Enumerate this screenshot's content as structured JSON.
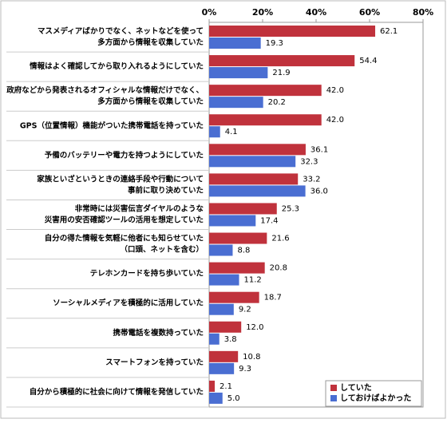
{
  "chart_data": {
    "type": "bar",
    "orientation": "horizontal",
    "categories": [
      [
        "マスメディアばかりでなく、ネットなどを使って",
        "多方面から情報を収集していた"
      ],
      [
        "情報はよく確認してから取り入れるようにしていた"
      ],
      [
        "政府などから発表されるオフィシャルな情報だけでなく、",
        "多方面から情報を収集していた"
      ],
      [
        "GPS（位置情報）機能がついた携帯電話を持っていた"
      ],
      [
        "予備のバッテリーや電力を持つようにしていた"
      ],
      [
        "家族といざというときの連絡手段や行動について",
        "事前に取り決めていた"
      ],
      [
        "非常時には災害伝言ダイヤルのような",
        "災害用の安否確認ツールの活用を想定していた"
      ],
      [
        "自分の得た情報を気軽に他者にも知らせていた",
        "（口頭、ネットを含む）"
      ],
      [
        "テレホンカードを持ち歩いていた"
      ],
      [
        "ソーシャルメディアを積極的に活用していた"
      ],
      [
        "携帯電話を複数持っていた"
      ],
      [
        "スマートフォンを持っていた"
      ],
      [
        "自分から積極的に社会に向けて情報を発信していた"
      ]
    ],
    "series": [
      {
        "name": "していた",
        "color": "#c0323c",
        "values": [
          62.1,
          54.4,
          42.0,
          42.0,
          36.1,
          33.2,
          25.3,
          21.6,
          20.8,
          18.7,
          12.0,
          10.8,
          2.1
        ],
        "value_labels": [
          "62.1",
          "54.4",
          "42.0",
          "42.0",
          "36.1",
          "33.2",
          "25.3",
          "21.6",
          "20.8",
          "18.7",
          "12.0",
          "10.8",
          "2.1"
        ]
      },
      {
        "name": "しておけばよかった",
        "color": "#4a6ed2",
        "values": [
          19.3,
          21.9,
          20.2,
          4.1,
          32.3,
          36.0,
          17.4,
          8.8,
          11.2,
          9.2,
          3.8,
          9.3,
          5.0
        ],
        "value_labels": [
          "19.3",
          "21.9",
          "20.2",
          "4.1",
          "32.3",
          "36.0",
          "17.4",
          "8.8",
          "11.2",
          "9.2",
          "3.8",
          "9.3",
          "5.0"
        ]
      }
    ],
    "xlim": [
      0,
      80
    ],
    "xticks": [
      {
        "value": 0,
        "label": "0%"
      },
      {
        "value": 20,
        "label": "20%"
      },
      {
        "value": 40,
        "label": "40%"
      },
      {
        "value": 60,
        "label": "60%"
      },
      {
        "value": 80,
        "label": "80%"
      }
    ],
    "legend": "lower right"
  }
}
